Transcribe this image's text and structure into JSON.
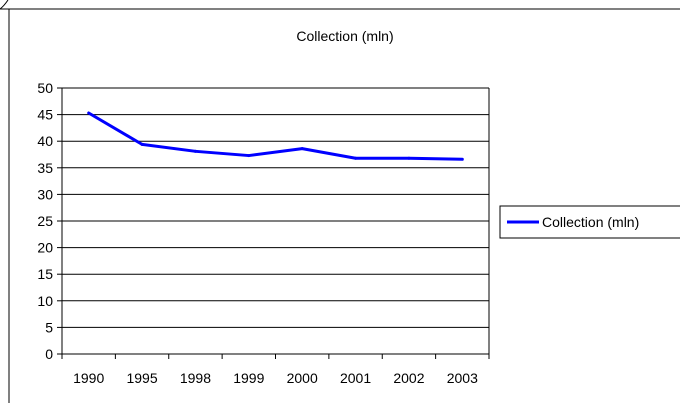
{
  "chart_data": {
    "type": "line",
    "title": "Collection (mln)",
    "xlabel": "",
    "ylabel": "",
    "categories": [
      "1990",
      "1995",
      "1998",
      "1999",
      "2000",
      "2001",
      "2002",
      "2003"
    ],
    "series": [
      {
        "name": "Collection (mln)",
        "values": [
          45.3,
          39.4,
          38.1,
          37.3,
          38.6,
          36.8,
          36.8,
          36.6
        ],
        "color": "#0000ff"
      }
    ],
    "ylim": [
      0,
      50
    ],
    "yticks": [
      "0",
      "5",
      "10",
      "15",
      "20",
      "25",
      "30",
      "35",
      "40",
      "45",
      "50"
    ],
    "grid": true,
    "legend": "right"
  }
}
